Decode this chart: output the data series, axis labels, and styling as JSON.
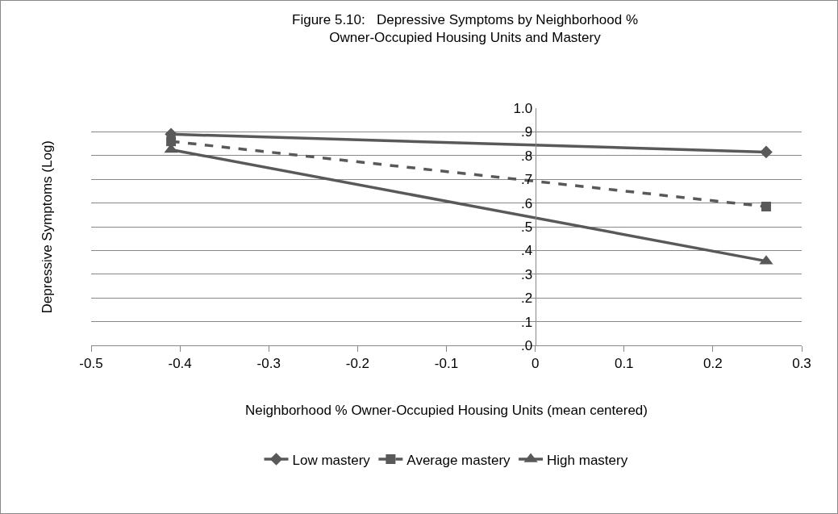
{
  "chart_data": {
    "type": "line",
    "title": "Figure 5.10:   Depressive Symptoms by Neighborhood %\nOwner-Occupied Housing Units and Mastery",
    "xlabel": "Neighborhood % Owner-Occupied Housing Units (mean centered)",
    "ylabel": "Depressive Symptoms (Log)",
    "x": [
      -0.41,
      0.26
    ],
    "series": [
      {
        "name": "Low mastery",
        "color": "#595959",
        "values": [
          0.89,
          0.815
        ],
        "marker": "diamond",
        "line_style": "solid"
      },
      {
        "name": "Average mastery",
        "color": "#595959",
        "values": [
          0.86,
          0.585
        ],
        "marker": "square",
        "line_style": "dashed"
      },
      {
        "name": "High mastery",
        "color": "#595959",
        "values": [
          0.825,
          0.355
        ],
        "marker": "triangle",
        "line_style": "solid"
      }
    ],
    "xlim": [
      -0.5,
      0.3
    ],
    "xticks": [
      -0.5,
      -0.4,
      -0.3,
      -0.2,
      -0.1,
      0,
      0.1,
      0.2,
      0.3
    ],
    "ylim": [
      0,
      1
    ],
    "yticks": [
      {
        "value": 0,
        "label": ".0"
      },
      {
        "value": 0.1,
        "label": ".1"
      },
      {
        "value": 0.2,
        "label": ".2"
      },
      {
        "value": 0.3,
        "label": ".3"
      },
      {
        "value": 0.4,
        "label": ".4"
      },
      {
        "value": 0.5,
        "label": ".5"
      },
      {
        "value": 0.6,
        "label": ".6"
      },
      {
        "value": 0.7,
        "label": ".7"
      },
      {
        "value": 0.8,
        "label": ".8"
      },
      {
        "value": 0.9,
        "label": ".9"
      },
      {
        "value": 1,
        "label": "1.0"
      }
    ],
    "grid": "y",
    "legend": "bottom"
  }
}
